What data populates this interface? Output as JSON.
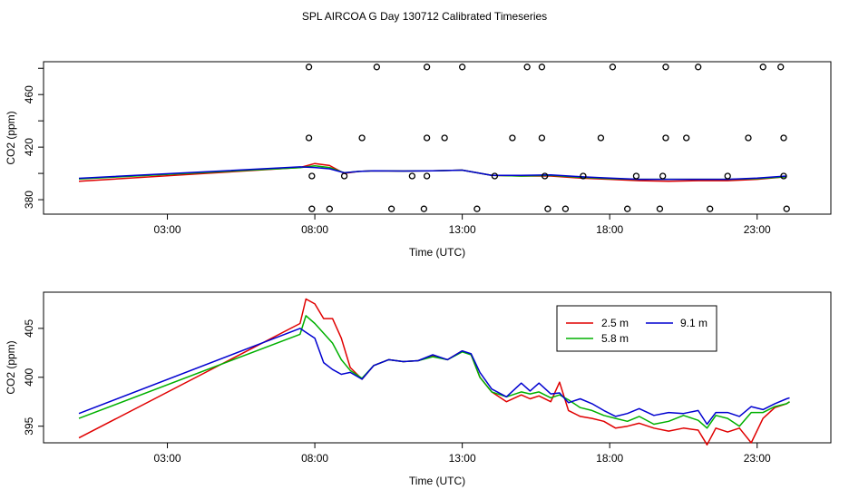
{
  "title": "SPL AIRCOA G  Day 130712  Calibrated Timeseries",
  "chart_data": [
    {
      "type": "line",
      "panel": "top",
      "xlabel": "Time (UTC)",
      "ylabel": "CO2 (ppm)",
      "xlim": [
        -1.2,
        25.5
      ],
      "ylim": [
        369,
        485
      ],
      "xticks": [
        3,
        8,
        13,
        18,
        23
      ],
      "xtick_labels": [
        "03:00",
        "08:00",
        "13:00",
        "18:00",
        "23:00"
      ],
      "yticks": [
        380,
        400,
        420,
        440,
        460,
        480
      ],
      "ytick_labels": [
        "380",
        "",
        "420",
        "",
        "460",
        ""
      ],
      "series": [
        {
          "name": "2.5 m",
          "color": "#e00000",
          "x": [
            0,
            7.5,
            8.0,
            8.5,
            9.0,
            9.5,
            10,
            11,
            12,
            13,
            13.5,
            14,
            15,
            16,
            17,
            18,
            19,
            20,
            21,
            22,
            23,
            24
          ],
          "y": [
            394,
            404.5,
            407.5,
            406,
            400,
            401.5,
            402,
            401.8,
            402,
            402.5,
            400.5,
            398.5,
            398,
            398,
            396.5,
            395.5,
            394.5,
            394,
            394.5,
            394.5,
            395.5,
            397.5
          ]
        },
        {
          "name": "5.8 m",
          "color": "#00b000",
          "x": [
            0,
            7.5,
            8.0,
            8.5,
            9.0,
            9.5,
            10,
            11,
            12,
            13,
            13.5,
            14,
            15,
            16,
            17,
            18,
            19,
            20,
            21,
            22,
            23,
            24
          ],
          "y": [
            395.8,
            404.4,
            405.8,
            404.5,
            400.5,
            401.5,
            402,
            401.8,
            402,
            402.5,
            400.5,
            398.5,
            398,
            398.5,
            397,
            396,
            395.5,
            395.5,
            395.5,
            395.5,
            396,
            397.5
          ]
        },
        {
          "name": "9.1 m",
          "color": "#0000d0",
          "x": [
            0,
            7.5,
            8.0,
            8.5,
            9.0,
            9.5,
            10,
            11,
            12,
            13,
            13.5,
            14,
            15,
            16,
            17,
            18,
            19,
            20,
            21,
            22,
            23,
            24
          ],
          "y": [
            396.3,
            405,
            404.5,
            403.5,
            400.5,
            401.5,
            402,
            401.8,
            402,
            402.5,
            400.5,
            398.5,
            398.5,
            398.8,
            397.5,
            396.5,
            395.5,
            395.5,
            395.5,
            395.5,
            396.5,
            398
          ]
        }
      ],
      "calibration_points": {
        "x": [
          7.8,
          10.1,
          11.8,
          13.0,
          15.2,
          15.7,
          18.1,
          19.9,
          21.0,
          23.2,
          23.8,
          7.8,
          9.6,
          11.8,
          12.4,
          14.7,
          15.7,
          17.7,
          19.9,
          20.6,
          22.7,
          23.9,
          7.9,
          9.0,
          11.3,
          11.8,
          14.1,
          15.8,
          17.1,
          18.9,
          19.8,
          22.0,
          23.9,
          7.9,
          8.5,
          10.6,
          11.7,
          13.5,
          15.9,
          16.5,
          18.6,
          19.7,
          21.4,
          24.0
        ],
        "y": [
          481,
          481,
          481,
          481,
          481,
          481,
          481,
          481,
          481,
          481,
          481,
          427,
          427,
          427,
          427,
          427,
          427,
          427,
          427,
          427,
          427,
          427,
          398,
          398,
          398,
          398,
          398,
          398,
          398,
          398,
          398,
          398,
          398,
          373,
          373,
          373,
          373,
          373,
          373,
          373,
          373,
          373,
          373,
          373
        ]
      }
    },
    {
      "type": "line",
      "panel": "bottom",
      "xlabel": "Time (UTC)",
      "ylabel": "CO2 (ppm)",
      "xlim": [
        -1.2,
        25.5
      ],
      "ylim": [
        393.3,
        408.7
      ],
      "xticks": [
        3,
        8,
        13,
        18,
        23
      ],
      "xtick_labels": [
        "03:00",
        "08:00",
        "13:00",
        "18:00",
        "23:00"
      ],
      "yticks": [
        395,
        400,
        405
      ],
      "ytick_labels": [
        "395",
        "400",
        "405"
      ],
      "legend": {
        "position": "top-right",
        "columns": 2
      },
      "series": [
        {
          "name": "2.5 m",
          "color": "#e00000",
          "x": [
            0,
            7.5,
            7.7,
            8.0,
            8.3,
            8.6,
            8.9,
            9.2,
            9.6,
            10,
            10.5,
            11,
            11.5,
            12,
            12.5,
            13,
            13.3,
            13.6,
            14,
            14.5,
            15,
            15.3,
            15.6,
            16,
            16.3,
            16.6,
            17,
            17.4,
            17.8,
            18.2,
            18.6,
            19,
            19.5,
            20,
            20.5,
            21,
            21.3,
            21.6,
            22,
            22.4,
            22.8,
            23.2,
            23.6,
            24.0,
            24.1
          ],
          "y": [
            393.8,
            405.5,
            408,
            407.5,
            406,
            406,
            404,
            401,
            399.8,
            401.2,
            401.8,
            401.6,
            401.7,
            402.2,
            401.8,
            402.7,
            402.3,
            400,
            398.5,
            397.5,
            398.2,
            397.8,
            398.1,
            397.5,
            399.5,
            396.6,
            396,
            395.8,
            395.5,
            394.8,
            395,
            395.3,
            394.8,
            394.5,
            394.8,
            394.6,
            393.1,
            394.8,
            394.4,
            394.8,
            393.3,
            395.8,
            396.9,
            397.3,
            397.5
          ]
        },
        {
          "name": "5.8 m",
          "color": "#00b000",
          "x": [
            0,
            7.5,
            7.7,
            8.0,
            8.3,
            8.6,
            8.9,
            9.2,
            9.6,
            10,
            10.5,
            11,
            11.5,
            12,
            12.5,
            13,
            13.3,
            13.6,
            14,
            14.5,
            15,
            15.3,
            15.6,
            16,
            16.3,
            16.6,
            17,
            17.4,
            17.8,
            18.2,
            18.6,
            19,
            19.5,
            20,
            20.5,
            21,
            21.3,
            21.6,
            22,
            22.4,
            22.8,
            23.2,
            23.6,
            24.0,
            24.1
          ],
          "y": [
            395.8,
            404.4,
            406.3,
            405.5,
            404.5,
            403.5,
            401.8,
            400.7,
            399.9,
            401.2,
            401.8,
            401.6,
            401.7,
            402.1,
            401.8,
            402.6,
            402.3,
            400,
            398.5,
            398,
            398.5,
            398.3,
            398.5,
            397.9,
            398.2,
            397.7,
            396.9,
            396.6,
            396.1,
            395.8,
            395.5,
            396,
            395.2,
            395.5,
            396.1,
            395.6,
            394.8,
            396.1,
            395.8,
            395,
            396.4,
            396.4,
            397,
            397.3,
            397.5
          ]
        },
        {
          "name": "9.1 m",
          "color": "#0000d0",
          "x": [
            0,
            7.5,
            7.7,
            8.0,
            8.3,
            8.6,
            8.9,
            9.2,
            9.6,
            10,
            10.5,
            11,
            11.5,
            12,
            12.5,
            13,
            13.3,
            13.6,
            14,
            14.5,
            15,
            15.3,
            15.6,
            16,
            16.3,
            16.6,
            17,
            17.4,
            17.8,
            18.2,
            18.6,
            19,
            19.5,
            20,
            20.5,
            21,
            21.3,
            21.6,
            22,
            22.4,
            22.8,
            23.2,
            23.6,
            24.0,
            24.1
          ],
          "y": [
            396.3,
            405,
            404.6,
            404,
            401.5,
            400.8,
            400.3,
            400.5,
            399.8,
            401.2,
            401.8,
            401.6,
            401.7,
            402.3,
            401.8,
            402.7,
            402.4,
            400.5,
            398.8,
            398,
            399.4,
            398.6,
            399.4,
            398.3,
            398.4,
            397.4,
            397.8,
            397.3,
            396.6,
            396,
            396.3,
            396.8,
            396.1,
            396.4,
            396.3,
            396.6,
            395.2,
            396.4,
            396.4,
            396,
            397,
            396.7,
            397.3,
            397.8,
            397.9
          ]
        }
      ]
    }
  ]
}
